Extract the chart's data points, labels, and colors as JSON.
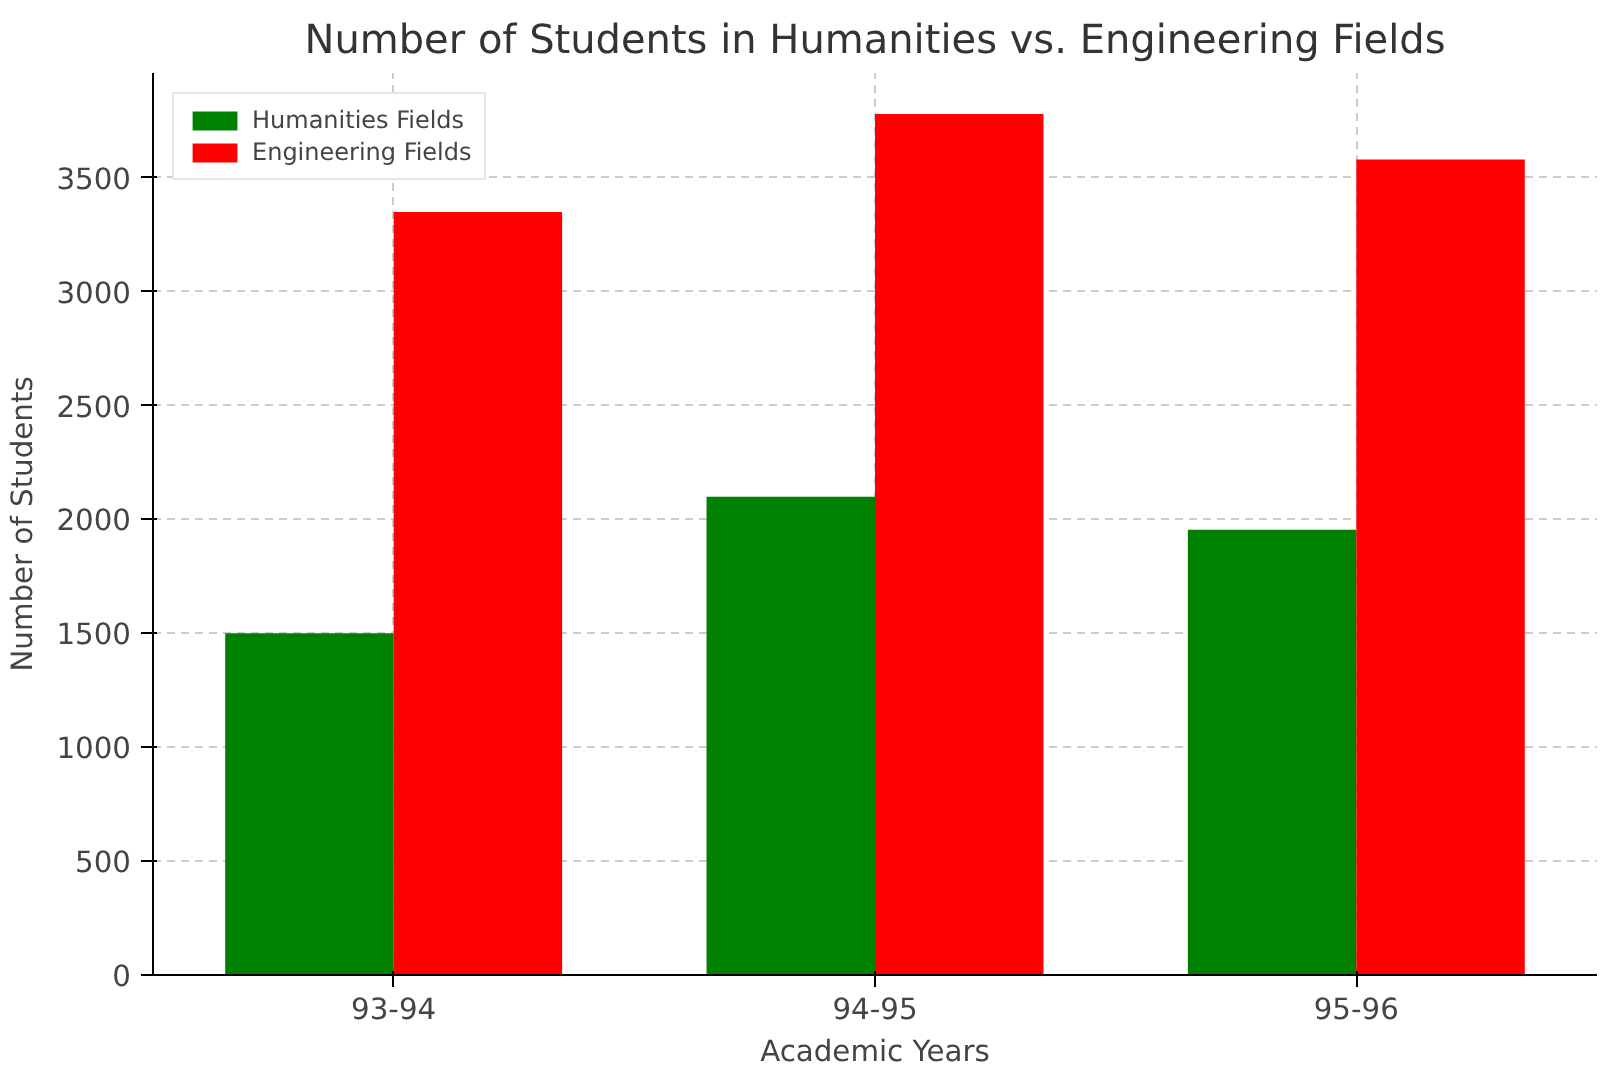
{
  "chart_data": {
    "type": "bar",
    "title": "Number of Students in Humanities vs. Engineering Fields",
    "xlabel": "Academic Years",
    "ylabel": "Number of Students",
    "categories": [
      "93-94",
      "94-95",
      "95-96"
    ],
    "series": [
      {
        "name": "Humanities Fields",
        "color": "#008000",
        "values": [
          1500,
          2100,
          1955
        ]
      },
      {
        "name": "Engineering Fields",
        "color": "#ff0000",
        "values": [
          3350,
          3780,
          3580
        ]
      }
    ],
    "ylim": [
      0,
      3960
    ],
    "yticks": [
      0,
      500,
      1000,
      1500,
      2000,
      2500,
      3000,
      3500
    ],
    "grid": true,
    "legend": "top left"
  }
}
